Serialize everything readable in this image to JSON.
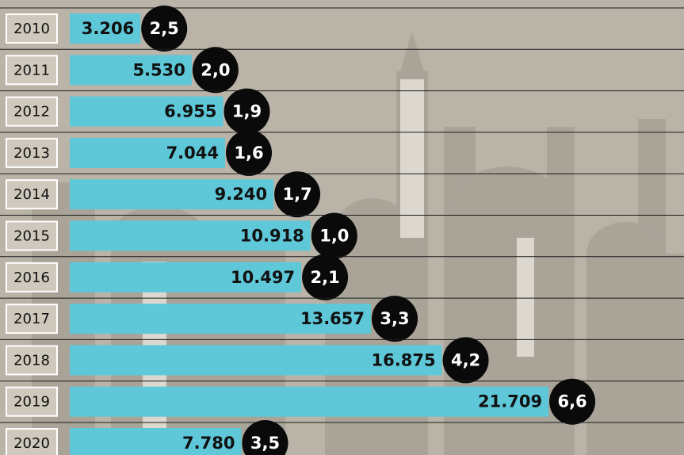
{
  "chart_data": {
    "type": "bar",
    "orientation": "horizontal",
    "categories": [
      "2010",
      "2011",
      "2012",
      "2013",
      "2014",
      "2015",
      "2016",
      "2017",
      "2018",
      "2019",
      "2020"
    ],
    "values": [
      3206,
      5530,
      6955,
      7044,
      9240,
      10918,
      10497,
      13657,
      16875,
      21709,
      7780
    ],
    "value_labels": [
      "3.206",
      "5.530",
      "6.955",
      "7.044",
      "9.240",
      "10.918",
      "10.497",
      "13.657",
      "16.875",
      "21.709",
      "7.780"
    ],
    "color": "#5ec8d8",
    "xlim": [
      0,
      27600
    ],
    "badges": {
      "values": [
        2.5,
        2.0,
        1.9,
        1.6,
        1.7,
        1.0,
        2.1,
        3.3,
        4.2,
        6.6,
        3.5
      ],
      "value_labels": [
        "2,5",
        "2,0",
        "1,9",
        "1,6",
        "1,7",
        "1,0",
        "2,1",
        "3,3",
        "4,2",
        "6,6",
        "3,5"
      ],
      "color": "#0a0a0a"
    }
  }
}
